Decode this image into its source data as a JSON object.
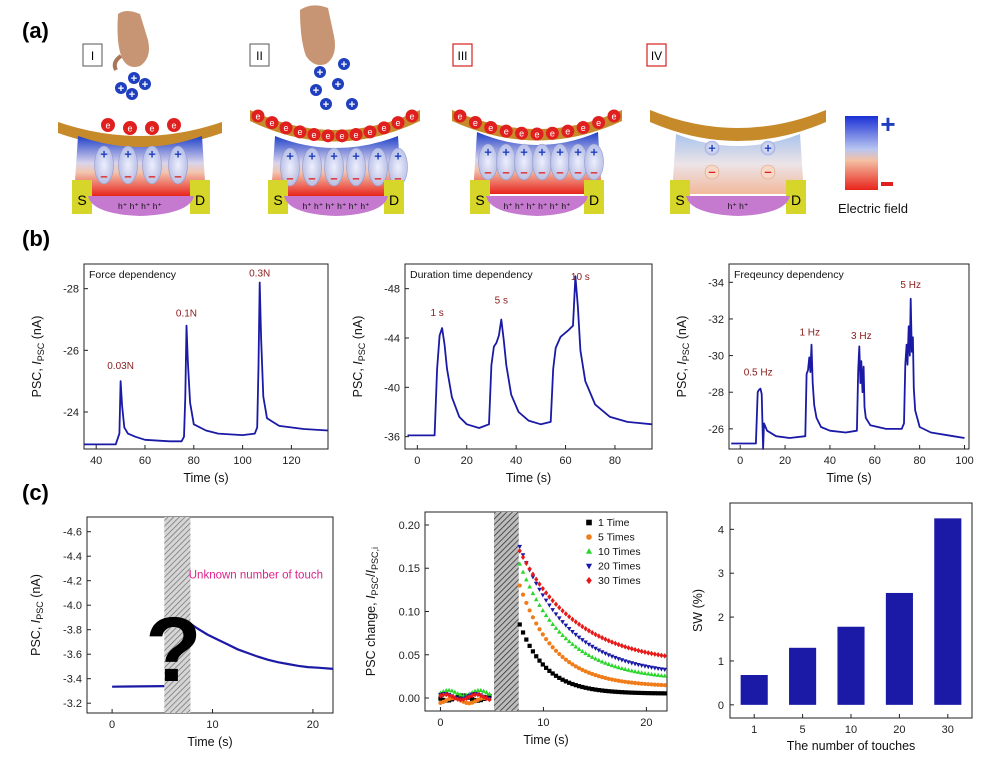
{
  "panel_labels": [
    "(a)",
    "(b)",
    "(c)"
  ],
  "schematic": {
    "stages": [
      "I",
      "II",
      "III",
      "IV"
    ],
    "electron": "e",
    "source": "S",
    "drain": "D",
    "holes": [
      "h⁺ h⁺ h⁺ h⁺",
      "h⁺ h⁺ h⁺ h⁺ h⁺ h⁺",
      "h⁺ h⁺ h⁺ h⁺ h⁺ h⁺",
      "h⁺ h⁺"
    ],
    "field_label": "Electric field",
    "plus": "+",
    "minus": "–",
    "colors": {
      "positive": "#1f3fbf",
      "negative": "#e0201e",
      "electrode": "#c78a2a",
      "channel": "#c57ad0",
      "pad": "#d6d62a"
    }
  },
  "chart_data": [
    {
      "type": "line",
      "id": "b1",
      "inset_title": "Force dependency",
      "xlabel": "Time (s)",
      "ylabel_main": "PSC, ",
      "ylabel_italic": "I",
      "ylabel_sub": "PSC",
      "ylabel_tail": " (nA)",
      "xlim": [
        35,
        135
      ],
      "ylim": [
        -22.8,
        -28.8
      ],
      "xticks": [
        "40",
        "60",
        "80",
        "100",
        "120"
      ],
      "xtick_values": [
        40,
        60,
        80,
        100,
        120
      ],
      "yticks": [
        "-24",
        "-26",
        "-28"
      ],
      "ytick_values": [
        -24,
        -26,
        -28
      ],
      "annotations": [
        {
          "text": "0.03N",
          "x": 50,
          "y": -25.4
        },
        {
          "text": "0.1N",
          "x": 77,
          "y": -27.1
        },
        {
          "text": "0.3N",
          "x": 107,
          "y": -28.4
        }
      ],
      "color": "#1a1aa6",
      "series": [
        {
          "x": [
            35,
            48,
            49.5,
            50,
            50.6,
            51.5,
            53,
            56,
            60,
            70,
            75,
            76,
            76.5,
            77,
            77.6,
            78.5,
            80,
            85,
            90,
            100,
            105,
            106,
            106.5,
            107,
            107.6,
            108.5,
            110,
            115,
            125,
            135
          ],
          "y": [
            -22.95,
            -22.95,
            -23.3,
            -25.0,
            -24.2,
            -23.5,
            -23.3,
            -23.2,
            -23.1,
            -23.05,
            -23.05,
            -23.2,
            -24.5,
            -26.8,
            -25.6,
            -24.3,
            -23.6,
            -23.4,
            -23.3,
            -23.25,
            -23.3,
            -23.5,
            -25.5,
            -28.2,
            -26.4,
            -24.5,
            -23.8,
            -23.55,
            -23.45,
            -23.4
          ]
        }
      ]
    },
    {
      "type": "line",
      "id": "b2",
      "inset_title": "Duration time dependency",
      "xlabel": "Time (s)",
      "ylabel_main": "PSC, ",
      "ylabel_italic": "I",
      "ylabel_sub": "PSC",
      "ylabel_tail": " (nA)",
      "xlim": [
        -5,
        95
      ],
      "ylim": [
        -35,
        -50
      ],
      "xticks": [
        "0",
        "20",
        "40",
        "60",
        "80"
      ],
      "xtick_values": [
        0,
        20,
        40,
        60,
        80
      ],
      "yticks": [
        "-36",
        "-40",
        "-44",
        "-48"
      ],
      "ytick_values": [
        -36,
        -40,
        -44,
        -48
      ],
      "annotations": [
        {
          "text": "1 s",
          "x": 8,
          "y": -45.8
        },
        {
          "text": "5 s",
          "x": 34,
          "y": -46.8
        },
        {
          "text": "10 s",
          "x": 66,
          "y": -48.7
        }
      ],
      "color": "#1a1aa6",
      "series": [
        {
          "x": [
            -4,
            7,
            8,
            9,
            10,
            11,
            12,
            14,
            17,
            20,
            25,
            29,
            30,
            31,
            32,
            33,
            34,
            35,
            36,
            38,
            41,
            45,
            50,
            54,
            55,
            56,
            58,
            61,
            63,
            64,
            65,
            66,
            68,
            72,
            78,
            85,
            95
          ],
          "y": [
            -36.1,
            -36.1,
            -41.5,
            -44.2,
            -44.8,
            -43.5,
            -41.5,
            -39.2,
            -37.6,
            -37.0,
            -36.7,
            -37.0,
            -41.8,
            -43.3,
            -43.6,
            -44.2,
            -45.5,
            -43.8,
            -41.8,
            -39.4,
            -38.0,
            -37.3,
            -37.0,
            -37.2,
            -41.5,
            -43.2,
            -44.1,
            -44.6,
            -45.0,
            -49.0,
            -46.5,
            -43.0,
            -40.5,
            -38.6,
            -37.6,
            -37.2,
            -37.0
          ]
        }
      ]
    },
    {
      "type": "line",
      "id": "b3",
      "inset_title": "Freqeuncy dependency",
      "xlabel": "Time (s)",
      "ylabel_main": "PSC, ",
      "ylabel_italic": "I",
      "ylabel_sub": "PSC",
      "ylabel_tail": " (nA)",
      "xlim": [
        -5,
        102
      ],
      "ylim": [
        -24.9,
        -35
      ],
      "xticks": [
        "0",
        "20",
        "40",
        "60",
        "80",
        "100"
      ],
      "xtick_values": [
        0,
        20,
        40,
        60,
        80,
        100
      ],
      "yticks": [
        "-26",
        "-28",
        "-30",
        "-32",
        "-34"
      ],
      "ytick_values": [
        -26,
        -28,
        -30,
        -32,
        -34
      ],
      "annotations": [
        {
          "text": "0.5 Hz",
          "x": 8,
          "y": -28.9
        },
        {
          "text": "1 Hz",
          "x": 31,
          "y": -31.1
        },
        {
          "text": "3 Hz",
          "x": 54,
          "y": -30.9
        },
        {
          "text": "5 Hz",
          "x": 76,
          "y": -33.7
        }
      ],
      "color": "#1a1aa6",
      "series": [
        {
          "x": [
            -4,
            7,
            7.8,
            8.2,
            9,
            9.6,
            10,
            10.2,
            10.6,
            12,
            16,
            22,
            29,
            29.6,
            30.2,
            30.8,
            31.3,
            31.8,
            32.3,
            33,
            34,
            36,
            40,
            47,
            52,
            52.6,
            53.1,
            53.6,
            54,
            54.5,
            55,
            55.4,
            56,
            58,
            65,
            72,
            73,
            73.6,
            74.2,
            74.6,
            75.1,
            75.6,
            76,
            76.5,
            77,
            77.4,
            78,
            80,
            85,
            95,
            100
          ],
          "y": [
            -25.2,
            -25.2,
            -28.0,
            -28.1,
            -28.2,
            -27.9,
            -26.0,
            -24.9,
            -26.3,
            -25.9,
            -25.6,
            -25.5,
            -25.6,
            -29.0,
            -29.2,
            -29.9,
            -29.1,
            -30.6,
            -28.5,
            -27.3,
            -26.6,
            -26.1,
            -25.9,
            -25.8,
            -25.9,
            -29.2,
            -30.5,
            -28.5,
            -29.7,
            -28.0,
            -29.4,
            -27.2,
            -26.6,
            -26.2,
            -26.0,
            -26.0,
            -26.3,
            -29.5,
            -30.6,
            -29.5,
            -31.6,
            -30.0,
            -33.1,
            -30.2,
            -31.0,
            -28.2,
            -27.0,
            -26.1,
            -25.8,
            -25.6,
            -25.5
          ]
        }
      ]
    },
    {
      "type": "line",
      "id": "c1",
      "annotation_text": "Unknown number of touch",
      "question_mark": "?",
      "xlabel": "Time (s)",
      "ylabel_main": "PSC, ",
      "ylabel_italic": "I",
      "ylabel_sub": "PSC",
      "ylabel_tail": " (nA)",
      "xlim": [
        -2.5,
        22
      ],
      "ylim": [
        -3.12,
        -4.72
      ],
      "xticks": [
        "0",
        "10",
        "20"
      ],
      "xtick_values": [
        0,
        10,
        20
      ],
      "yticks": [
        "-3.2",
        "-3.4",
        "-3.6",
        "-3.8",
        "-4.0",
        "-4.2",
        "-4.4",
        "-4.6"
      ],
      "ytick_values": [
        -3.2,
        -3.4,
        -3.6,
        -3.8,
        -4.0,
        -4.2,
        -4.4,
        -4.6
      ],
      "shaded_region": [
        5.2,
        7.8
      ],
      "color": "#1a1aa6",
      "series": [
        {
          "x": [
            0,
            5.2,
            7.8,
            8.5,
            9.5,
            10.5,
            11.5,
            12.5,
            13.5,
            14.5,
            15.5,
            16.5,
            17.5,
            18.5,
            19.5,
            20.5,
            22
          ],
          "y": [
            -3.335,
            -3.34,
            -3.85,
            -3.81,
            -3.76,
            -3.72,
            -3.68,
            -3.64,
            -3.61,
            -3.58,
            -3.555,
            -3.535,
            -3.52,
            -3.505,
            -3.495,
            -3.49,
            -3.48
          ]
        }
      ]
    },
    {
      "type": "scatter",
      "id": "c2",
      "xlabel": "Time (s)",
      "ylabel_main": "PSC change, ",
      "ylabel_italic": "I",
      "ylabel_sub": "PSC",
      "ylabel_mid": "/",
      "ylabel_italic2": "I",
      "ylabel_sub2": "PSC,i",
      "xlim": [
        -1.5,
        22
      ],
      "ylim": [
        -0.015,
        0.215
      ],
      "xticks": [
        "0",
        "10",
        "20"
      ],
      "xtick_values": [
        0,
        10,
        20
      ],
      "yticks": [
        "0.00",
        "0.05",
        "0.10",
        "0.15",
        "0.20"
      ],
      "ytick_values": [
        0,
        0.05,
        0.1,
        0.15,
        0.2
      ],
      "shaded_region": [
        5.2,
        7.6
      ],
      "series": [
        {
          "name": "1 Time",
          "color": "#000000",
          "marker": "square",
          "peak": 0.085,
          "tau": 2.6,
          "floor": 0.005,
          "base": 0.0
        },
        {
          "name": "5 Times",
          "color": "#f07c1a",
          "marker": "circle",
          "peak": 0.13,
          "tau": 3.4,
          "floor": 0.013,
          "base": -0.003
        },
        {
          "name": "10 Times",
          "color": "#2bd62b",
          "marker": "triangle-up",
          "peak": 0.155,
          "tau": 4.4,
          "floor": 0.02,
          "base": 0.006
        },
        {
          "name": "20 Times",
          "color": "#1a1aa6",
          "marker": "triangle-down",
          "peak": 0.175,
          "tau": 4.8,
          "floor": 0.025,
          "base": 0.002
        },
        {
          "name": "30 Times",
          "color": "#e81919",
          "marker": "diamond",
          "peak": 0.17,
          "tau": 5.6,
          "floor": 0.038,
          "base": 0.001
        }
      ]
    },
    {
      "type": "bar",
      "id": "c3",
      "categories": [
        "1",
        "5",
        "10",
        "20",
        "30"
      ],
      "values": [
        0.68,
        1.3,
        1.78,
        2.55,
        4.25
      ],
      "xlabel": "The number of touches",
      "ylabel": "SW (%)",
      "ylim": [
        -0.3,
        4.6
      ],
      "yticks": [
        "0",
        "1",
        "2",
        "3",
        "4"
      ],
      "ytick_values": [
        0,
        1,
        2,
        3,
        4
      ],
      "color": "#1a1aa6"
    }
  ]
}
